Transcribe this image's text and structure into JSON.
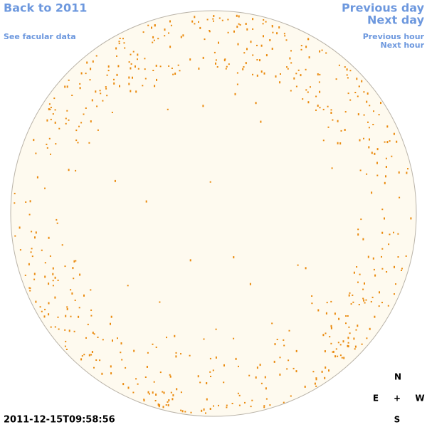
{
  "links": {
    "back": "Back to 2011",
    "facular": "See facular data",
    "previous_day": "Previous day",
    "next_day": "Next day",
    "previous_hour": "Previous hour",
    "next_hour": "Next hour"
  },
  "compass": {
    "north": "N",
    "east": "E",
    "center": "+",
    "west": "W",
    "south": "S"
  },
  "timestamp": "2011-12-15T09:58:56"
}
